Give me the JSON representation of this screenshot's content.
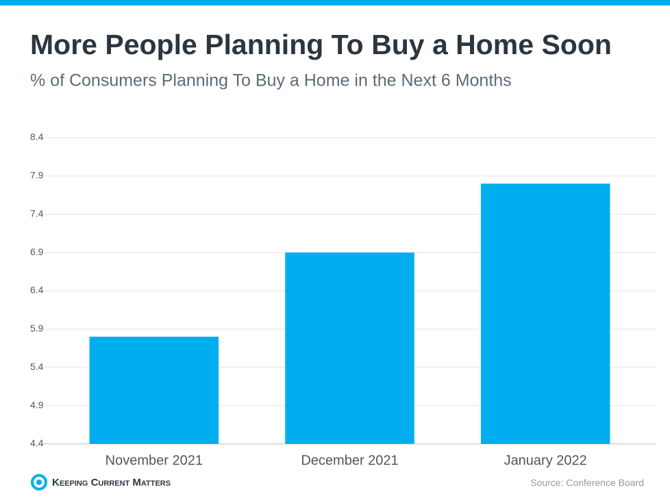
{
  "chart_data": {
    "type": "bar",
    "title": "More People Planning To Buy a Home Soon",
    "subtitle": "% of Consumers Planning To Buy a Home in the Next 6 Months",
    "categories": [
      "November 2021",
      "December 2021",
      "January 2022"
    ],
    "values": [
      5.8,
      6.9,
      7.8
    ],
    "color": "#00aeef",
    "ylim": [
      4.4,
      8.4
    ],
    "yticks": [
      4.4,
      4.9,
      5.4,
      5.9,
      6.4,
      6.9,
      7.4,
      7.9,
      8.4
    ],
    "grid": true,
    "brand": "Keeping Current Matters",
    "source": "Source: Conference Board"
  }
}
